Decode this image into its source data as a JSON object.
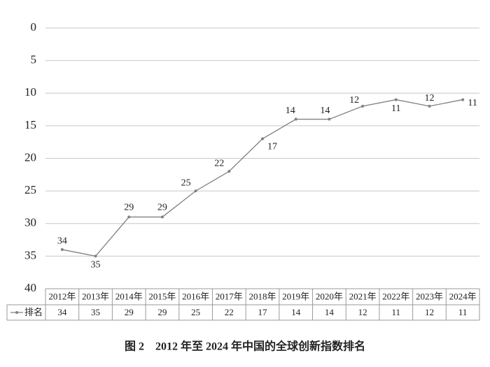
{
  "chart_data": {
    "type": "line",
    "caption": "图 2　2012 年至 2024 年中国的全球创新指数排名",
    "categories": [
      "2012年",
      "2013年",
      "2014年",
      "2015年",
      "2016年",
      "2017年",
      "2018年",
      "2019年",
      "2020年",
      "2021年",
      "2022年",
      "2023年",
      "2024年"
    ],
    "series": [
      {
        "name": "排名",
        "color": "#808080",
        "values": [
          34,
          35,
          29,
          29,
          25,
          22,
          17,
          14,
          14,
          12,
          11,
          12,
          11
        ]
      }
    ],
    "ylim": [
      40,
      0
    ],
    "yticks": [
      0,
      5,
      10,
      15,
      20,
      25,
      30,
      35,
      40
    ],
    "grid": true,
    "data_table": true
  }
}
